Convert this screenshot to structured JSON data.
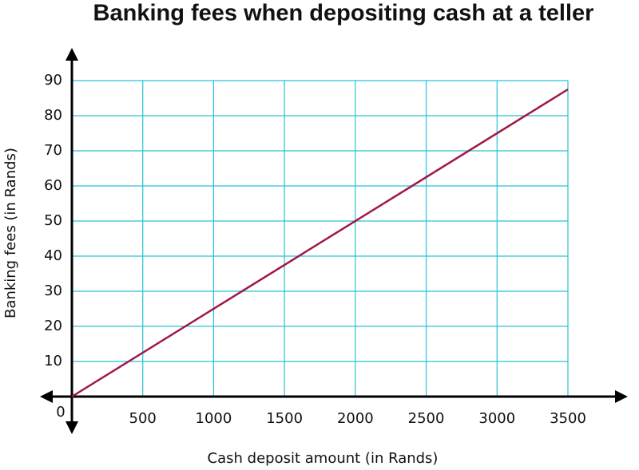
{
  "chart_data": {
    "type": "line",
    "title": "Banking fees when depositing cash at a teller",
    "x_label": "Cash deposit amount (in Rands)",
    "y_label": "Banking fees (in Rands)",
    "x": [
      0,
      3500
    ],
    "series": [
      {
        "name": "Banking fees",
        "color": "#a0174a",
        "values": [
          0,
          87.5
        ]
      }
    ],
    "xlim": [
      0,
      3500
    ],
    "ylim": [
      0,
      90
    ],
    "xticks": [
      0,
      500,
      1000,
      1500,
      2000,
      2500,
      3000,
      3500
    ],
    "yticks": [
      10,
      20,
      30,
      40,
      50,
      60,
      70,
      80,
      90
    ],
    "grid": true,
    "grid_color": "#29c3d3"
  }
}
